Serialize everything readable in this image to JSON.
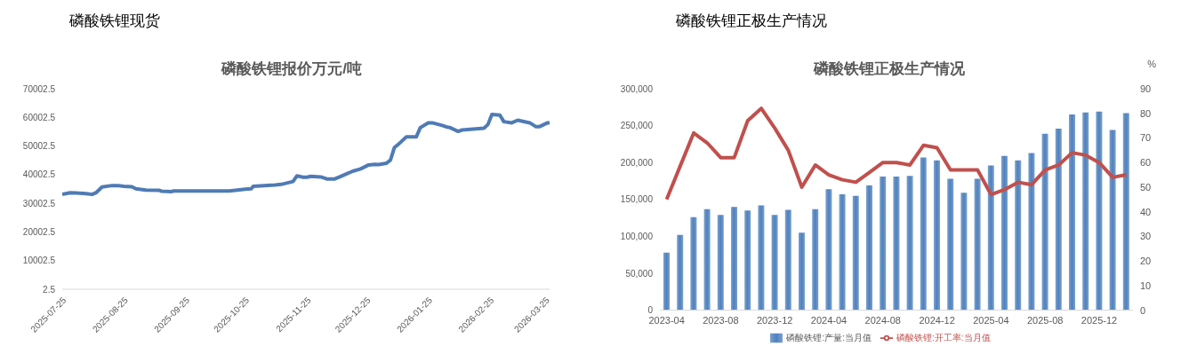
{
  "chart_data": [
    {
      "type": "line",
      "subtitle": "磷酸铁锂现货",
      "title": "磷酸铁锂报价万元/吨",
      "x": [
        "2025-07-25",
        "2025-07-29",
        "2025-08-01",
        "2025-08-06",
        "2025-08-09",
        "2025-08-11",
        "2025-08-14",
        "2025-08-19",
        "2025-08-22",
        "2025-08-25",
        "2025-08-29",
        "2025-08-31",
        "2025-09-05",
        "2025-09-12",
        "2025-09-13",
        "2025-09-18",
        "2025-09-19",
        "2025-10-17",
        "2025-10-25",
        "2025-10-28",
        "2025-10-29",
        "2025-11-09",
        "2025-11-12",
        "2025-11-18",
        "2025-11-20",
        "2025-11-23",
        "2025-11-25",
        "2025-11-27",
        "2025-12-02",
        "2025-12-05",
        "2025-12-09",
        "2025-12-12",
        "2025-12-15",
        "2025-12-18",
        "2025-12-22",
        "2025-12-26",
        "2025-12-29",
        "2025-12-31",
        "2026-01-04",
        "2026-01-06",
        "2026-01-08",
        "2026-01-10",
        "2026-01-14",
        "2026-01-19",
        "2026-01-21",
        "2026-01-25",
        "2026-01-27",
        "2026-02-01",
        "2026-02-03",
        "2026-02-05",
        "2026-02-09",
        "2026-02-11",
        "2026-02-22",
        "2026-02-24",
        "2026-02-26",
        "2026-03-02",
        "2026-03-04",
        "2026-03-08",
        "2026-03-11",
        "2026-03-17",
        "2026-03-20",
        "2026-03-22",
        "2026-03-26",
        "2026-03-27"
      ],
      "series": [
        {
          "color": "#4f7bb5",
          "values": [
            33100,
            33700,
            33600,
            33400,
            33100,
            33700,
            35700,
            36200,
            36200,
            35900,
            35800,
            35100,
            34600,
            34500,
            34200,
            34100,
            34300,
            34300,
            34900,
            35100,
            35900,
            36400,
            36600,
            37600,
            39600,
            39100,
            39100,
            39400,
            39200,
            38500,
            38500,
            39400,
            40300,
            41200,
            42000,
            43400,
            43600,
            43500,
            44000,
            45100,
            49500,
            50600,
            53200,
            53200,
            56400,
            58100,
            58100,
            57200,
            56700,
            56400,
            55100,
            55600,
            56200,
            57500,
            61000,
            60800,
            58500,
            58100,
            59000,
            58100,
            56800,
            56800,
            58100,
            58100
          ]
        }
      ],
      "xlim": [
        "2025-07-25",
        "2026-03-27"
      ],
      "xticks": [
        "2025-07-25",
        "2025-08-25",
        "2025-09-25",
        "2025-10-25",
        "2025-11-25",
        "2025-12-25",
        "2026-01-25",
        "2026-02-25",
        "2026-03-25"
      ],
      "ylim": [
        2.5,
        70002.5
      ],
      "yticks": [
        2.5,
        10002.5,
        20002.5,
        30002.5,
        40002.5,
        50002.5,
        60002.5,
        70002.5
      ],
      "grid": false,
      "legend": false,
      "marker": "none",
      "line_style": "solid"
    },
    {
      "type": "bar",
      "subtitle": "磷酸铁锂正极生产情况",
      "title": "磷酸铁锂正极生产情况",
      "y2label": "%",
      "categories": [
        "2023-04",
        null,
        null,
        null,
        "2023-08",
        null,
        null,
        null,
        "2023-12",
        null,
        null,
        null,
        "2024-04",
        null,
        null,
        null,
        "2024-08",
        null,
        null,
        null,
        "2024-12",
        null,
        null,
        null,
        "2025-04",
        null,
        null,
        null,
        "2025-08",
        null,
        null,
        null,
        "2025-12",
        null,
        null
      ],
      "series": [
        {
          "name": "磷酸铁锂:产量:当月值",
          "color": "#4f81bd",
          "values": [
            78000,
            102000,
            126000,
            137000,
            129000,
            140000,
            135000,
            142000,
            129000,
            136000,
            105000,
            137000,
            164000,
            157000,
            155000,
            169000,
            181000,
            181000,
            182000,
            207000,
            203000,
            178000,
            159000,
            178000,
            196000,
            209000,
            203000,
            213000,
            239000,
            246000,
            265000,
            268000,
            269000,
            244000,
            267000
          ]
        },
        {
          "type": "line",
          "name": "磷酸铁锂:开工率:当月值",
          "color": "#c0504d",
          "axis": "y2",
          "values": [
            45,
            58.5,
            72,
            68,
            62,
            62,
            77,
            82,
            74,
            65,
            50,
            59,
            55,
            53,
            52,
            56,
            60,
            60,
            59,
            67,
            66,
            57,
            57,
            57,
            47,
            49,
            52,
            51,
            57,
            59,
            64,
            63,
            60,
            54,
            55
          ]
        }
      ],
      "ylim": [
        0,
        300000
      ],
      "yticks": [
        0,
        {
          "value": 50000,
          "label": "50,000"
        },
        {
          "value": 100000,
          "label": "100,000"
        },
        {
          "value": 150000,
          "label": "150,000"
        },
        {
          "value": 200000,
          "label": "200,000"
        },
        {
          "value": 250000,
          "label": "250,000"
        },
        {
          "value": 300000,
          "label": "300,000"
        }
      ],
      "y2lim": [
        0,
        90
      ],
      "y2ticks": [
        0,
        10,
        20,
        30,
        40,
        50,
        60,
        70,
        80,
        90
      ],
      "grid": false,
      "legend": "bottom",
      "marker": "none",
      "line_style": "solid"
    }
  ]
}
